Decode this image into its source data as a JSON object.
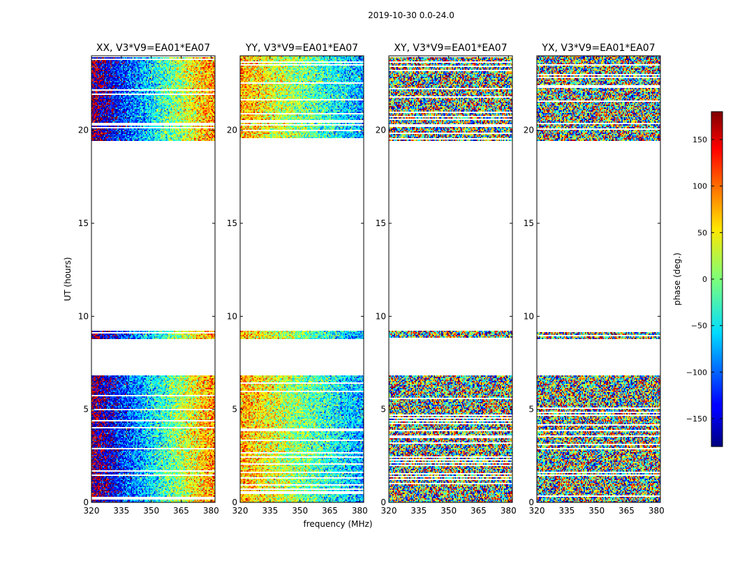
{
  "chart_data": {
    "type": "heatmap",
    "suptitle": "2019-10-30 0.0-24.0",
    "xlabel": "frequency (MHz)",
    "ylabel": "UT (hours)",
    "xlim": [
      320,
      382
    ],
    "ylim": [
      0,
      24
    ],
    "xticks": [
      320,
      335,
      350,
      365,
      380
    ],
    "yticks": [
      0,
      5,
      10,
      15,
      20
    ],
    "colorbar": {
      "label": "phase (deg.)",
      "range": [
        -180,
        180
      ],
      "ticks": [
        150,
        100,
        50,
        0,
        -50,
        -100,
        -150
      ],
      "tick_labels": [
        "150",
        "100",
        "50",
        "0",
        "−50",
        "−100",
        "−150"
      ],
      "colormap": "jet"
    },
    "data_time_ranges_hours": [
      [
        0.0,
        6.8
      ],
      [
        8.8,
        9.2
      ],
      [
        19.4,
        24.0
      ]
    ],
    "panels": [
      {
        "title": "XX, V3*V9=EA01*EA07",
        "pol": "XX",
        "mean_phase_deg": -120,
        "trend_deg_per_MHz": 4.5,
        "noise_deg": 55
      },
      {
        "title": "YY, V3*V9=EA01*EA07",
        "pol": "YY",
        "mean_phase_deg": 40,
        "trend_deg_per_MHz": -2.5,
        "noise_deg": 55
      },
      {
        "title": "XY, V3*V9=EA01*EA07",
        "pol": "XY",
        "mean_phase_deg": 0,
        "trend_deg_per_MHz": 0,
        "noise_deg": 170
      },
      {
        "title": "YX, V3*V9=EA01*EA07",
        "pol": "YX",
        "mean_phase_deg": 0,
        "trend_deg_per_MHz": 0,
        "noise_deg": 170
      }
    ]
  }
}
